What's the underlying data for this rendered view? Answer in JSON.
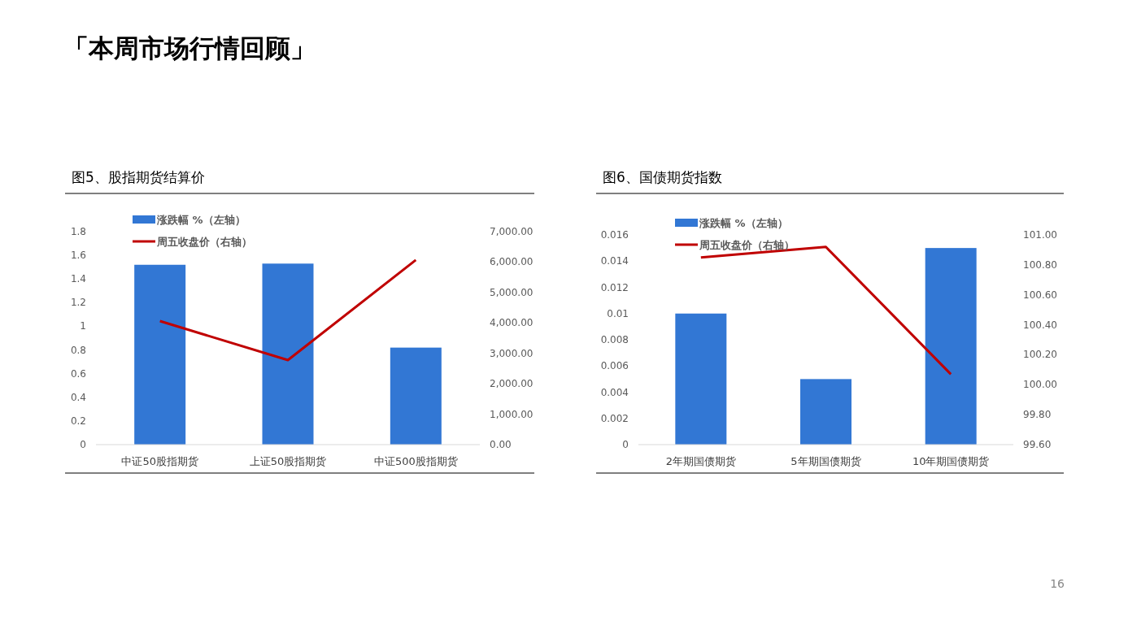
{
  "chart_data": [
    {
      "type": "other",
      "title": "「本周市场行情回顾」",
      "annotations": [
        "16"
      ]
    },
    {
      "type": "bar",
      "title": "图5、股指期货结算价",
      "categories": [
        "中证50股指期货",
        "上证50股指期货",
        "中证500股指期货"
      ],
      "legend": "top left",
      "ylim": [
        0,
        1.8
      ],
      "yticks": [
        0,
        0.2,
        0.4,
        0.6,
        0.8,
        1,
        1.2,
        1.4,
        1.6,
        1.8
      ],
      "y2lim": [
        0,
        7000
      ],
      "y2ticks": [
        {
          "value": 0,
          "label": "0.00"
        },
        {
          "value": 1000,
          "label": "1,000.00"
        },
        {
          "value": 2000,
          "label": "2,000.00"
        },
        {
          "value": 3000,
          "label": "3,000.00"
        },
        {
          "value": 4000,
          "label": "4,000.00"
        },
        {
          "value": 5000,
          "label": "5,000.00"
        },
        {
          "value": 6000,
          "label": "6,000.00"
        },
        {
          "value": 7000,
          "label": "7,000.00"
        }
      ],
      "series": [
        {
          "name": "涨跌幅 %（左轴）",
          "type": "bar",
          "color": "#3277d4",
          "values": [
            1.52,
            1.53,
            0.82
          ]
        },
        {
          "name": "周五收盘价（右轴）",
          "type": "line",
          "axis": "y2",
          "color": "#c00000",
          "values": [
            4060,
            2780,
            6070
          ]
        }
      ]
    },
    {
      "type": "bar",
      "title": "图6、国债期货指数",
      "categories": [
        "2年期国债期货",
        "5年期国债期货",
        "10年期国债期货"
      ],
      "legend": "top left",
      "ylim": [
        0,
        0.016
      ],
      "yticks": [
        0,
        0.002,
        0.004,
        0.006,
        0.008,
        0.01,
        0.012,
        0.014,
        0.016
      ],
      "y2lim": [
        99.6,
        101
      ],
      "y2ticks": [
        {
          "value": 99.6,
          "label": "99.60"
        },
        {
          "value": 99.8,
          "label": "99.80"
        },
        {
          "value": 100,
          "label": "100.00"
        },
        {
          "value": 100.2,
          "label": "100.20"
        },
        {
          "value": 100.4,
          "label": "100.40"
        },
        {
          "value": 100.6,
          "label": "100.60"
        },
        {
          "value": 100.8,
          "label": "100.80"
        },
        {
          "value": 101,
          "label": "101.00"
        }
      ],
      "series": [
        {
          "name": "涨跌幅 %（左轴）",
          "type": "bar",
          "color": "#3277d4",
          "values": [
            0.01,
            0.005,
            0.015
          ]
        },
        {
          "name": "周五收盘价（右轴）",
          "type": "line",
          "axis": "y2",
          "color": "#c00000",
          "values": [
            100.85,
            100.92,
            100.07
          ]
        }
      ]
    }
  ]
}
